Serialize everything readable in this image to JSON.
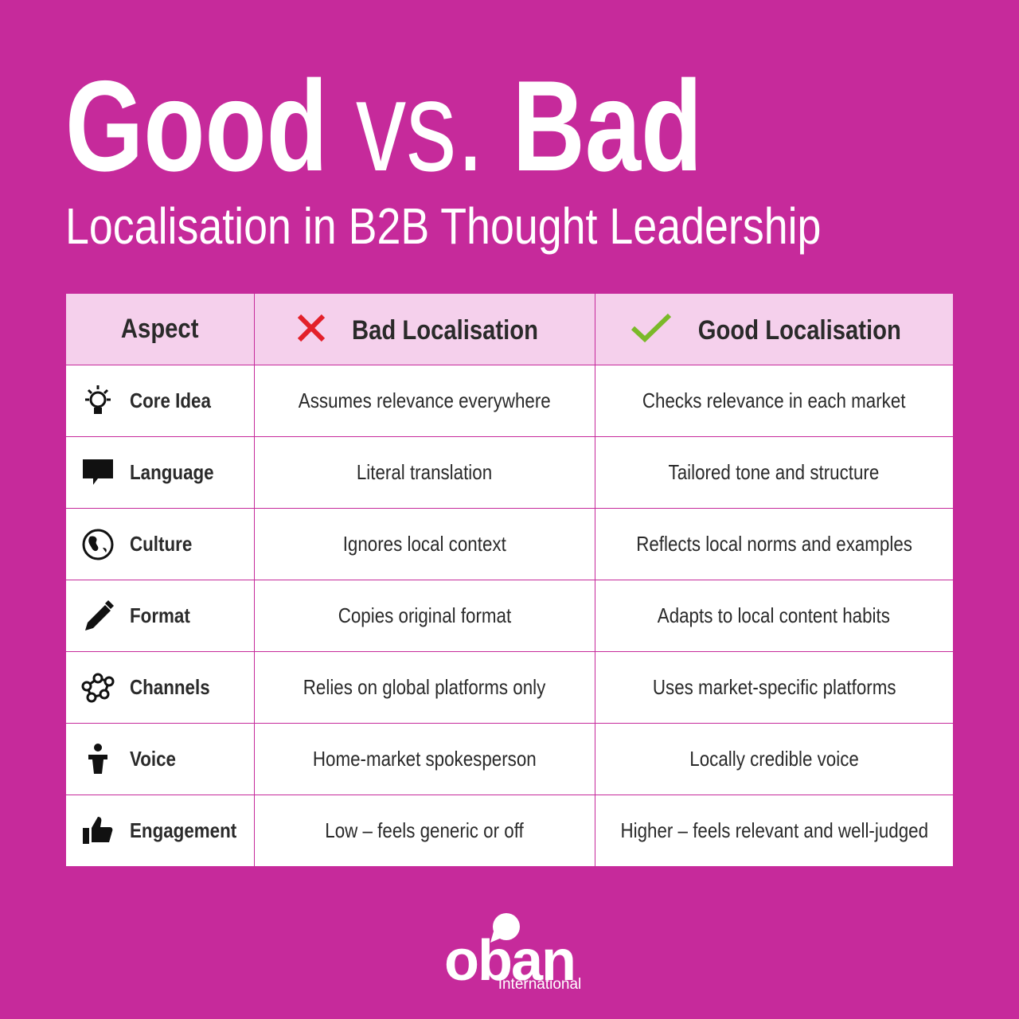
{
  "header": {
    "title": {
      "good": "Good",
      "vs": "vs.",
      "bad": "Bad"
    },
    "subtitle": "Localisation in B2B Thought Leadership"
  },
  "table": {
    "columns": [
      "Aspect",
      "Bad Localisation",
      "Good Localisation"
    ],
    "rows": [
      [
        "Core Idea",
        "Assumes relevance everywhere",
        "Checks relevance in each market"
      ],
      [
        "Language",
        "Literal translation",
        "Tailored tone and structure"
      ],
      [
        "Culture",
        "Ignores local context",
        "Reflects local norms and examples"
      ],
      [
        "Format",
        "Copies original format",
        "Adapts to local content habits"
      ],
      [
        "Channels",
        "Relies on global platforms only",
        "Uses market-specific platforms"
      ],
      [
        "Voice",
        "Home-market spokesperson",
        "Locally credible voice"
      ],
      [
        "Engagement",
        "Low – feels generic or off",
        "Higher – feels relevant and well-judged"
      ]
    ]
  },
  "logo": {
    "name": "oban",
    "tagline": "International"
  }
}
